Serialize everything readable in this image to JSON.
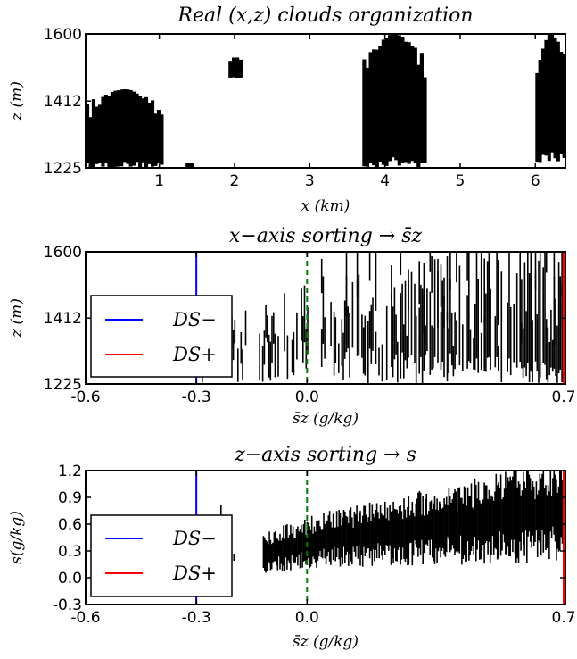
{
  "chart_data": [
    {
      "type": "heatmap",
      "title": "Real (x,z)  clouds organization",
      "xlabel": "x (km)",
      "ylabel": "z (m)",
      "xlim": [
        0.02,
        6.4
      ],
      "ylim": [
        1225,
        1600
      ],
      "xticks": [
        "1",
        "2",
        "3",
        "4",
        "5",
        "6"
      ],
      "yticks": [
        "1225",
        "1412",
        "1600"
      ],
      "cloud_mask_regions": [
        {
          "name": "cloud-near-0.5km",
          "x": [
            0.02,
            1.05
          ],
          "z": [
            1225,
            1445
          ]
        },
        {
          "name": "cloud-near-2km",
          "x": [
            1.92,
            2.1
          ],
          "z": [
            1475,
            1535
          ]
        },
        {
          "name": "cloud-near-1.4km",
          "x": [
            1.35,
            1.45
          ],
          "z": [
            1225,
            1240
          ]
        },
        {
          "name": "cloud-near-4.2km",
          "x": [
            3.7,
            4.55
          ],
          "z": [
            1225,
            1600
          ]
        },
        {
          "name": "cloud-near-6.2km",
          "x": [
            6.0,
            6.4
          ],
          "z": [
            1240,
            1600
          ]
        }
      ]
    },
    {
      "type": "heatmap",
      "title": "x−axis sorting → s̄z",
      "xlabel": "s̄z (g/kg)",
      "ylabel": "z (m)",
      "xlim": [
        -0.6,
        0.7
      ],
      "ylim": [
        1225,
        1600
      ],
      "xticks": [
        "-0.6",
        "-0.3",
        "0.0",
        "0.7"
      ],
      "yticks": [
        "1225",
        "1412",
        "1600"
      ],
      "reference_lines": [
        {
          "name": "DS−",
          "x": -0.3,
          "color": "#0000ff",
          "style": "solid"
        },
        {
          "name": "DS+",
          "x": 0.7,
          "color": "#ff0000",
          "style": "solid"
        },
        {
          "name": "zero",
          "x": 0.0,
          "color": "#008000",
          "style": "dashed"
        }
      ],
      "legend": {
        "position": "left",
        "entries": [
          "DS−",
          "DS+"
        ]
      }
    },
    {
      "type": "scatter",
      "title": "z−axis sorting → s",
      "xlabel": "s̄z (g/kg)",
      "ylabel": "s(g/kg)",
      "xlim": [
        -0.6,
        0.7
      ],
      "ylim": [
        -0.3,
        1.2
      ],
      "xticks": [
        "-0.6",
        "-0.3",
        "0.0",
        "0.7"
      ],
      "yticks": [
        "1.2",
        "0.9",
        "0.6",
        "0.3",
        "0.0",
        "-0.3"
      ],
      "reference_lines": [
        {
          "name": "DS−",
          "x": -0.3,
          "color": "#0000ff",
          "style": "solid"
        },
        {
          "name": "DS+",
          "x": 0.7,
          "color": "#ff0000",
          "style": "solid"
        },
        {
          "name": "zero",
          "x": 0.0,
          "color": "#008000",
          "style": "dashed"
        }
      ],
      "legend": {
        "position": "left",
        "entries": [
          "DS−",
          "DS+"
        ]
      },
      "trend": {
        "x": [
          -0.2,
          0.0,
          0.2,
          0.4,
          0.68
        ],
        "y": [
          0.18,
          0.4,
          0.5,
          0.6,
          0.75
        ]
      }
    }
  ]
}
